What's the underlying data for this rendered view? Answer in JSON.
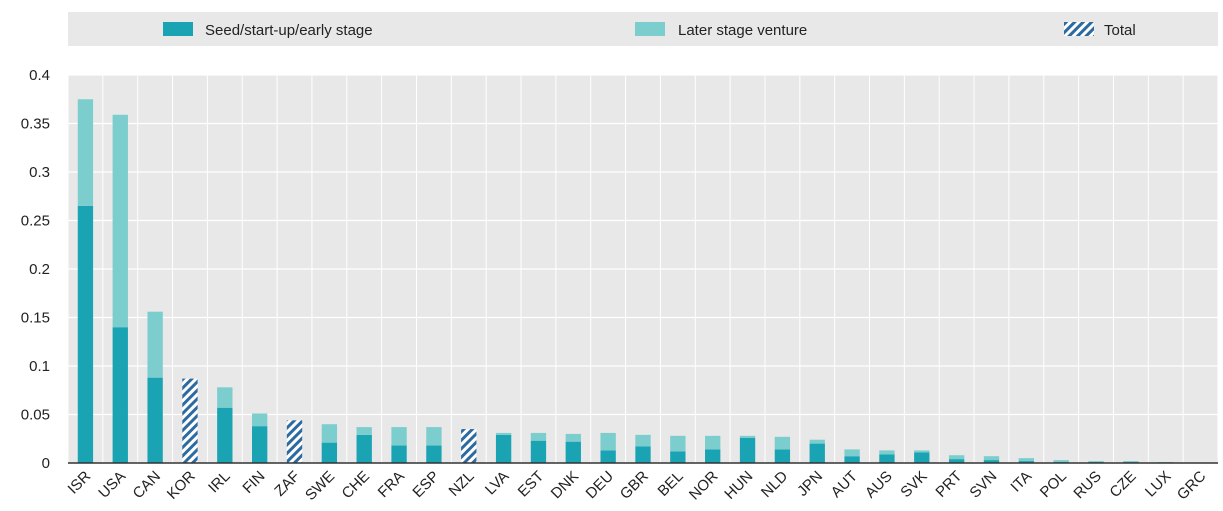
{
  "chart_data": {
    "type": "bar",
    "stacked": true,
    "title": "",
    "xlabel": "",
    "ylabel": "",
    "ylim": [
      0,
      0.4
    ],
    "yticks": [
      "0",
      "0.05",
      "0.1",
      "0.15",
      "0.2",
      "0.25",
      "0.3",
      "0.35",
      "0.4"
    ],
    "grid": true,
    "legend_position": "top",
    "categories": [
      "ISR",
      "USA",
      "CAN",
      "KOR",
      "IRL",
      "FIN",
      "ZAF",
      "SWE",
      "CHE",
      "FRA",
      "ESP",
      "NZL",
      "LVA",
      "EST",
      "DNK",
      "DEU",
      "GBR",
      "BEL",
      "NOR",
      "HUN",
      "NLD",
      "JPN",
      "AUT",
      "AUS",
      "SVK",
      "PRT",
      "SVN",
      "ITA",
      "POL",
      "RUS",
      "CZE",
      "LUX",
      "GRC"
    ],
    "series": [
      {
        "name": "Seed/start-up/early stage",
        "color": "#1aa3b3",
        "values": [
          0.265,
          0.14,
          0.088,
          null,
          0.057,
          0.038,
          null,
          0.021,
          0.029,
          0.018,
          0.018,
          null,
          0.029,
          0.023,
          0.022,
          0.013,
          0.017,
          0.012,
          0.014,
          0.026,
          0.014,
          0.02,
          0.007,
          0.009,
          0.011,
          0.004,
          0.003,
          0.002,
          0.001,
          0.001,
          0.001,
          0,
          0
        ]
      },
      {
        "name": "Later stage venture",
        "color": "#7ccdcd",
        "values": [
          0.11,
          0.219,
          0.068,
          null,
          0.021,
          0.013,
          null,
          0.019,
          0.008,
          0.019,
          0.019,
          null,
          0.002,
          0.008,
          0.008,
          0.018,
          0.012,
          0.016,
          0.014,
          0.002,
          0.013,
          0.004,
          0.007,
          0.004,
          0.002,
          0.004,
          0.004,
          0.003,
          0.002,
          0.001,
          0.001,
          0.001,
          0
        ]
      },
      {
        "name": "Total",
        "color": "#2c6aa0",
        "pattern": "hatched",
        "values": [
          null,
          null,
          null,
          0.087,
          null,
          null,
          0.044,
          null,
          null,
          null,
          null,
          0.035,
          null,
          null,
          null,
          null,
          null,
          null,
          null,
          null,
          null,
          null,
          null,
          null,
          null,
          null,
          null,
          null,
          null,
          null,
          null,
          null,
          null
        ]
      }
    ],
    "colors": {
      "plot_background": "#e8e8e8",
      "legend_background": "#e8e8e8",
      "grid": "#ffffff",
      "axis": "#333333"
    }
  }
}
